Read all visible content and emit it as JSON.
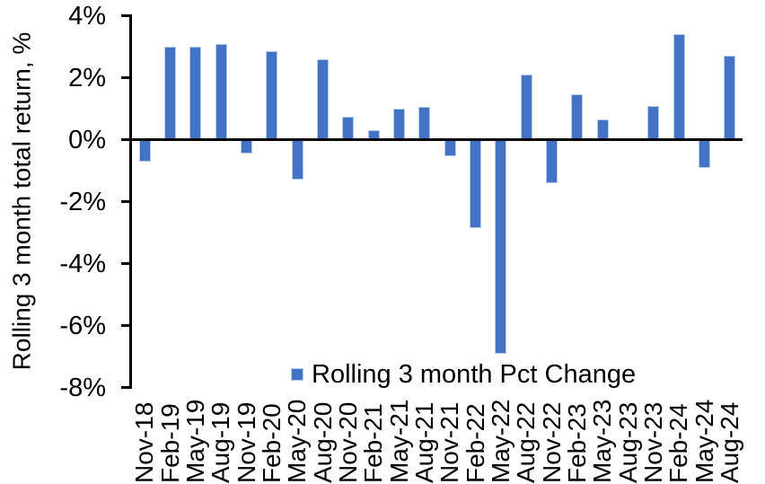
{
  "chart_data": {
    "type": "bar",
    "title": "",
    "xlabel": "",
    "ylabel": "Rolling 3 month total return, %",
    "legend_label": "Rolling 3 month Pct Change",
    "legend_position": "inside-bottom-center",
    "grid": false,
    "ylim": [
      -8,
      4
    ],
    "ytick_step": 2,
    "yticks": [
      {
        "value": 4,
        "label": "4%"
      },
      {
        "value": 2,
        "label": "2%"
      },
      {
        "value": 0,
        "label": "0%"
      },
      {
        "value": -2,
        "label": "-2%"
      },
      {
        "value": -4,
        "label": "-4%"
      },
      {
        "value": -6,
        "label": "-6%"
      },
      {
        "value": -8,
        "label": "-8%"
      }
    ],
    "categories": [
      "Nov-18",
      "Feb-19",
      "May-19",
      "Aug-19",
      "Nov-19",
      "Feb-20",
      "May-20",
      "Aug-20",
      "Nov-20",
      "Feb-21",
      "May-21",
      "Aug-21",
      "Nov-21",
      "Feb-22",
      "May-22",
      "Aug-22",
      "Nov-22",
      "Feb-23",
      "May-23",
      "Aug-23",
      "Nov-23",
      "Feb-24",
      "May-24",
      "Aug-24"
    ],
    "values": [
      -0.7,
      3.0,
      3.0,
      3.1,
      -0.45,
      2.85,
      -1.3,
      2.6,
      0.75,
      0.3,
      1.0,
      1.05,
      -0.55,
      -2.85,
      -6.9,
      2.1,
      -1.4,
      1.45,
      0.65,
      0,
      1.1,
      3.4,
      -0.9,
      2.7
    ],
    "colors": {
      "bar": "#4472C4",
      "bar_border": "#B7CCEC",
      "axis": "#000000",
      "text": "#000000",
      "background": "#FFFFFF"
    }
  }
}
